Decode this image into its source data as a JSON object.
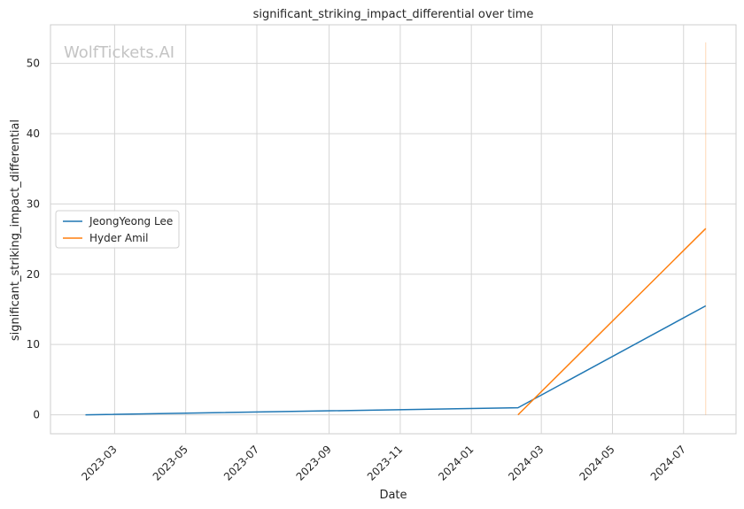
{
  "watermark": "WolfTickets.AI",
  "chart_data": {
    "type": "line",
    "title": "significant_striking_impact_differential over time",
    "xlabel": "Date",
    "ylabel": "significant_striking_impact_differential",
    "x_type": "date",
    "xlim": [
      "2023-01-05",
      "2024-08-15"
    ],
    "ylim": [
      -2.7,
      55.5
    ],
    "x_ticks": [
      "2023-03",
      "2023-05",
      "2023-07",
      "2023-09",
      "2023-11",
      "2024-01",
      "2024-03",
      "2024-05",
      "2024-07"
    ],
    "y_ticks": [
      0,
      10,
      20,
      30,
      40,
      50
    ],
    "grid": true,
    "legend_position": "center-left",
    "series": [
      {
        "name": "JeongYeong Lee",
        "color": "#1f77b4",
        "points": [
          {
            "x": "2023-02-04",
            "y": 0
          },
          {
            "x": "2024-02-10",
            "y": 1.0
          },
          {
            "x": "2024-07-20",
            "y": 15.5
          }
        ]
      },
      {
        "name": "Hyder Amil",
        "color": "#ff7f0e",
        "points": [
          {
            "x": "2024-02-10",
            "y": 0
          },
          {
            "x": "2024-07-20",
            "y": 26.5
          }
        ]
      }
    ],
    "vertical_band": {
      "x": "2024-07-20",
      "y_range": [
        0,
        53
      ],
      "color": "#ff7f0e"
    }
  }
}
